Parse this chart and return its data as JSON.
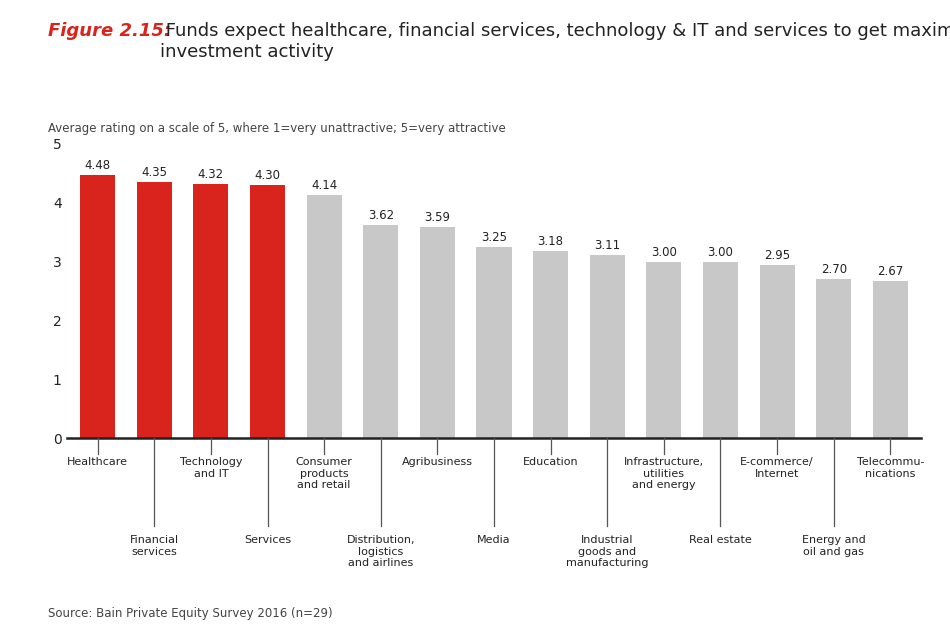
{
  "categories_row1": [
    "Healthcare",
    "Technology\nand IT",
    "Consumer\nproducts\nand retail",
    "Agribusiness",
    "Education",
    "Infrastructure,\nutilities\nand energy",
    "E-commerce/\nInternet",
    "Telecommu-\nnications"
  ],
  "categories_row2": [
    "Financial\nservices",
    "Services",
    "Distribution,\nlogistics\nand airlines",
    "Media",
    "Industrial\ngoods and\nmanufacturing",
    "Real estate",
    "Energy and\noil and gas"
  ],
  "categories_row1_idx": [
    0,
    2,
    4,
    6,
    8,
    10,
    12,
    14
  ],
  "categories_row2_idx": [
    1,
    3,
    5,
    7,
    9,
    11,
    13
  ],
  "values": [
    4.48,
    4.35,
    4.32,
    4.3,
    4.14,
    3.62,
    3.59,
    3.25,
    3.18,
    3.11,
    3.0,
    3.0,
    2.95,
    2.7,
    2.67
  ],
  "bar_colors": [
    "#d9231d",
    "#d9231d",
    "#d9231d",
    "#d9231d",
    "#c8c8c8",
    "#c8c8c8",
    "#c8c8c8",
    "#c8c8c8",
    "#c8c8c8",
    "#c8c8c8",
    "#c8c8c8",
    "#c8c8c8",
    "#c8c8c8",
    "#c8c8c8",
    "#c8c8c8"
  ],
  "title_prefix": "Figure 2.15:",
  "title_body": " Funds expect healthcare, financial services, technology & IT and services to get maximum\ninvestment activity",
  "subtitle": "Average rating on a scale of 5, where 1=very unattractive; 5=very attractive",
  "ylim": [
    0,
    5
  ],
  "yticks": [
    0,
    1,
    2,
    3,
    4,
    5
  ],
  "source": "Source: Bain Private Equity Survey 2016 (n=29)",
  "bg_color": "#ffffff",
  "title_color_prefix": "#d9231d",
  "title_color_body": "#222222",
  "bar_label_color": "#222222",
  "axis_color": "#222222",
  "subtitle_color": "#444444",
  "source_color": "#444444",
  "tick_line_color": "#555555"
}
